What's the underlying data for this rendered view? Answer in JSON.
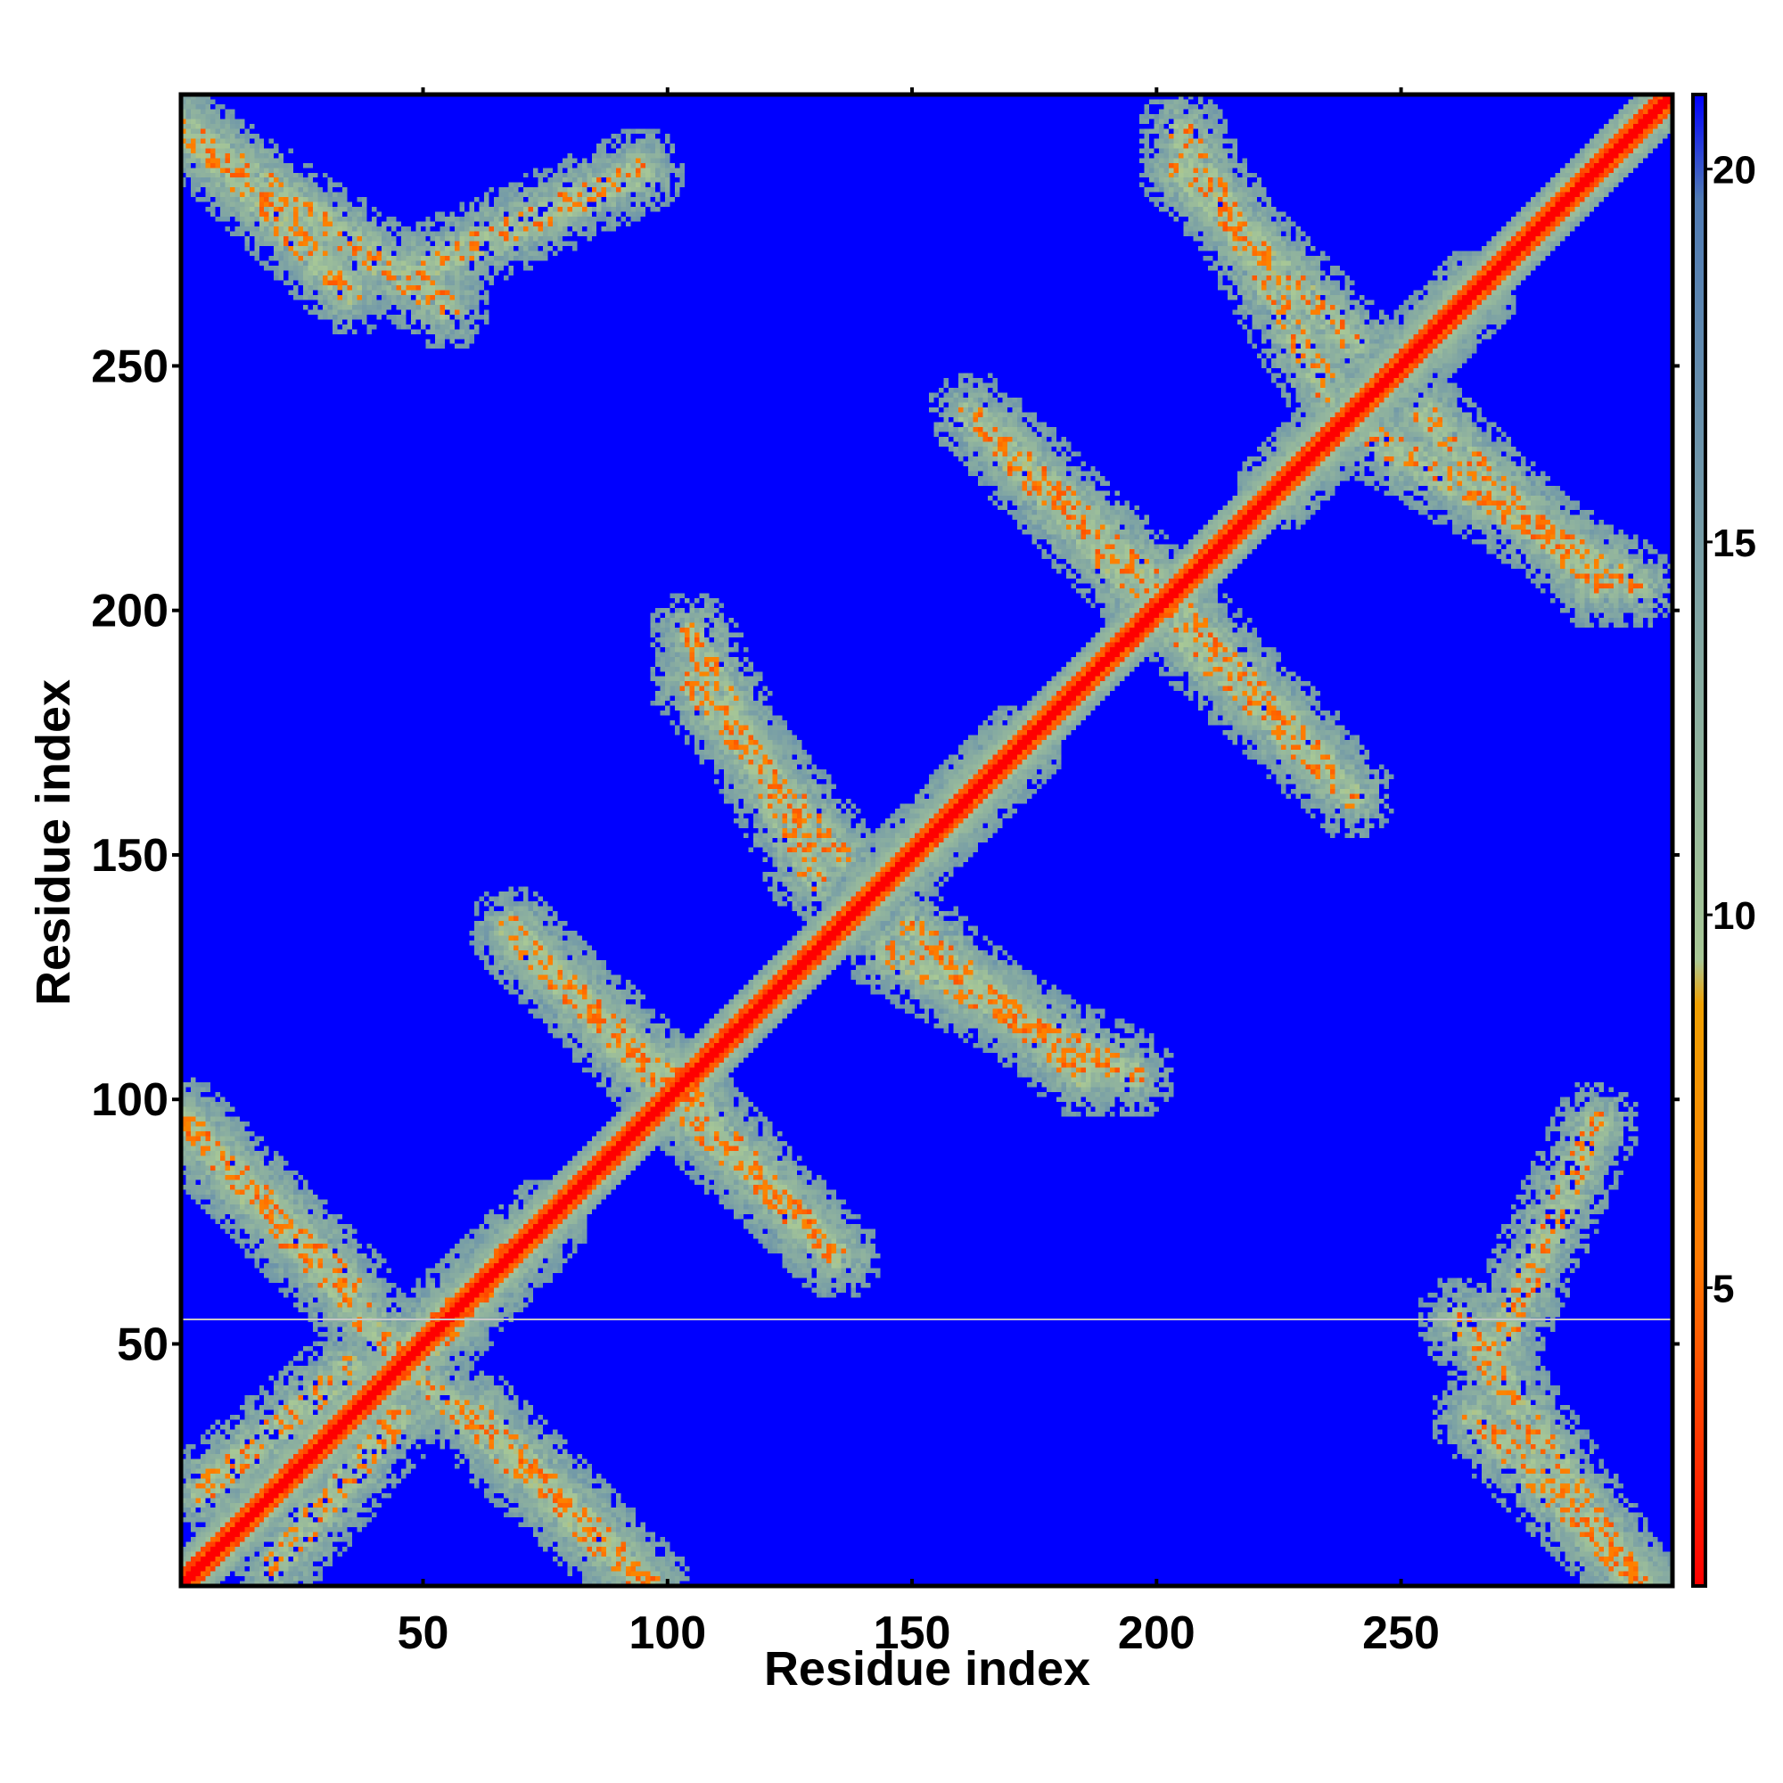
{
  "chart_data": {
    "type": "heatmap",
    "title": "",
    "xlabel": "Residue index",
    "ylabel": "Residue index",
    "n_residues": 305,
    "xlim": [
      1,
      305
    ],
    "ylim": [
      1,
      305
    ],
    "x_ticks": [
      50,
      100,
      150,
      200,
      250
    ],
    "y_ticks": [
      50,
      100,
      150,
      200,
      250
    ],
    "colorbar": {
      "ticks": [
        5,
        10,
        15,
        20
      ],
      "range": [
        1,
        21
      ],
      "colors": [
        "#ff0000",
        "#ff7a00",
        "#f0a000",
        "#a8c896",
        "#4f7ab4",
        "#0000ff"
      ],
      "stops": [
        0.0,
        0.22,
        0.39,
        0.42,
        0.93,
        1.0
      ]
    },
    "background_value": 21,
    "diagonal": {
      "from": 1,
      "to": 305,
      "value": 1
    },
    "bands": [
      {
        "type": "anti",
        "from": [
          1,
          299
        ],
        "to": [
          35,
          265
        ]
      },
      {
        "type": "anti",
        "from": [
          1,
          96
        ],
        "to": [
          35,
          62
        ]
      },
      {
        "type": "anti",
        "from": [
          48,
          45
        ],
        "to": [
          95,
          1
        ]
      },
      {
        "type": "anti",
        "from": [
          70,
          132
        ],
        "to": [
          105,
          100
        ]
      },
      {
        "type": "anti",
        "from": [
          105,
          96
        ],
        "to": [
          135,
          68
        ]
      },
      {
        "type": "anti",
        "from": [
          105,
          185
        ],
        "to": [
          135,
          150
        ]
      },
      {
        "type": "anti",
        "from": [
          145,
          130
        ],
        "to": [
          195,
          105
        ]
      },
      {
        "type": "anti",
        "from": [
          168,
          235
        ],
        "to": [
          200,
          205
        ]
      },
      {
        "type": "anti",
        "from": [
          205,
          195
        ],
        "to": [
          240,
          162
        ]
      },
      {
        "type": "anti",
        "from": [
          205,
          290
        ],
        "to": [
          240,
          255
        ]
      },
      {
        "type": "anti",
        "from": [
          245,
          235
        ],
        "to": [
          298,
          205
        ]
      },
      {
        "type": "anti",
        "from": [
          262,
          55
        ],
        "to": [
          298,
          1
        ]
      },
      {
        "type": "para",
        "from": [
          48,
          50
        ],
        "to": [
          75,
          75
        ]
      },
      {
        "type": "para",
        "from": [
          140,
          140
        ],
        "to": [
          172,
          172
        ]
      },
      {
        "type": "para",
        "from": [
          225,
          225
        ],
        "to": [
          265,
          265
        ]
      },
      {
        "type": "para",
        "from": [
          5,
          20
        ],
        "to": [
          35,
          45
        ]
      },
      {
        "type": "para",
        "from": [
          50,
          270
        ],
        "to": [
          95,
          290
        ]
      }
    ],
    "grid": false,
    "legend": "none"
  }
}
